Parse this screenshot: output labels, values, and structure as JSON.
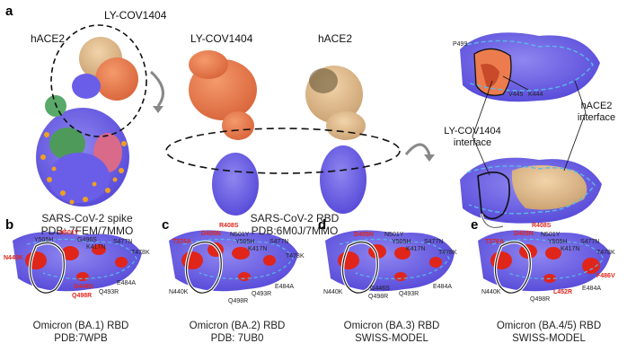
{
  "colors": {
    "rbd_purple": "#6a5ee8",
    "rbd_light": "#8f86f0",
    "antibody_orange": "#ec7c4e",
    "ace2_tan": "#e8c595",
    "mutation_red": "#e0251b",
    "interface_dash": "#5ab8e8"
  },
  "panel_a": {
    "letter": "a",
    "spike_antibody_label": "LY-COV1404",
    "spike_ace2_label": "hACE2",
    "spike_caption": [
      "SARS-CoV-2 spike",
      "PDB: 7FEM/7MMO"
    ],
    "rbd_antibody_label": "LY-COV1404",
    "rbd_ace2_label": "hACE2",
    "rbd_caption": [
      "SARS-CoV-2 RBD",
      "PDB:6M0J/7MMO"
    ],
    "residues": [
      "P499",
      "V445",
      "K444"
    ],
    "antibody_interface_label": [
      "LY-COV1404",
      "interface"
    ],
    "ace2_interface_label": [
      "hACE2",
      "interface"
    ]
  },
  "panel_b": {
    "letter": "b",
    "caption": [
      "Omicron (BA.1) RBD",
      "PDB:7WPB"
    ],
    "mutations_black": [
      "Y505H",
      "G496S",
      "K417N",
      "S477N",
      "T478K",
      "E484A",
      "Q493R"
    ],
    "mutations_red": [
      "N501Y",
      "N440K",
      "G446S",
      "Q498R"
    ]
  },
  "panel_c": {
    "letter": "c",
    "caption": [
      "Omicron (BA.2) RBD",
      "PDB: 7UB0"
    ],
    "mutations_black": [
      "N501Y",
      "Y505H",
      "K417N",
      "S477N",
      "T478K",
      "E484A",
      "Q493R",
      "Q498R",
      "N440K"
    ],
    "mutations_red": [
      "R408S",
      "D405N",
      "T376A"
    ]
  },
  "panel_d": {
    "letter": "d",
    "caption": [
      "Omicron (BA.3) RBD",
      "SWISS-MODEL"
    ],
    "mutations_black": [
      "N501Y",
      "Y505H",
      "K417N",
      "S477N",
      "T478K",
      "N440K",
      "G446S",
      "Q498R",
      "Q493R",
      "E484A"
    ],
    "mutations_red": [
      "D405N"
    ]
  },
  "panel_e": {
    "letter": "e",
    "caption": [
      "Omicron (BA.4/5) RBD",
      "SWISS-MODEL"
    ],
    "mutations_black": [
      "N501Y",
      "Y505H",
      "K417N",
      "S477N",
      "T478K",
      "N440K",
      "Q498R",
      "E484A"
    ],
    "mutations_red": [
      "R408S",
      "D405N",
      "T376A",
      "L452R",
      "F486V"
    ]
  }
}
